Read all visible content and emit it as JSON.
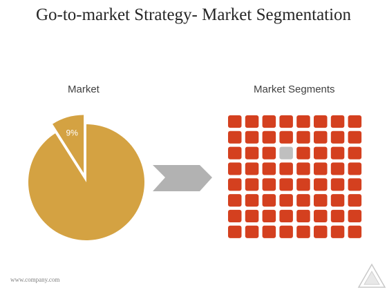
{
  "slide": {
    "title": "Go-to-market Strategy- Market Segmentation",
    "footer": "www.company.com"
  },
  "market": {
    "label": "Market",
    "share_label": "9%",
    "share_percent": 9,
    "pie_color": "#D4A242"
  },
  "segments": {
    "label": "Market Segments",
    "rows": 8,
    "cols": 8,
    "highlighted_row": 2,
    "highlighted_col": 3,
    "cell_color": "#D4401F",
    "highlight_color": "#BFBFBF"
  },
  "arrow_color": "#B2B2B2"
}
